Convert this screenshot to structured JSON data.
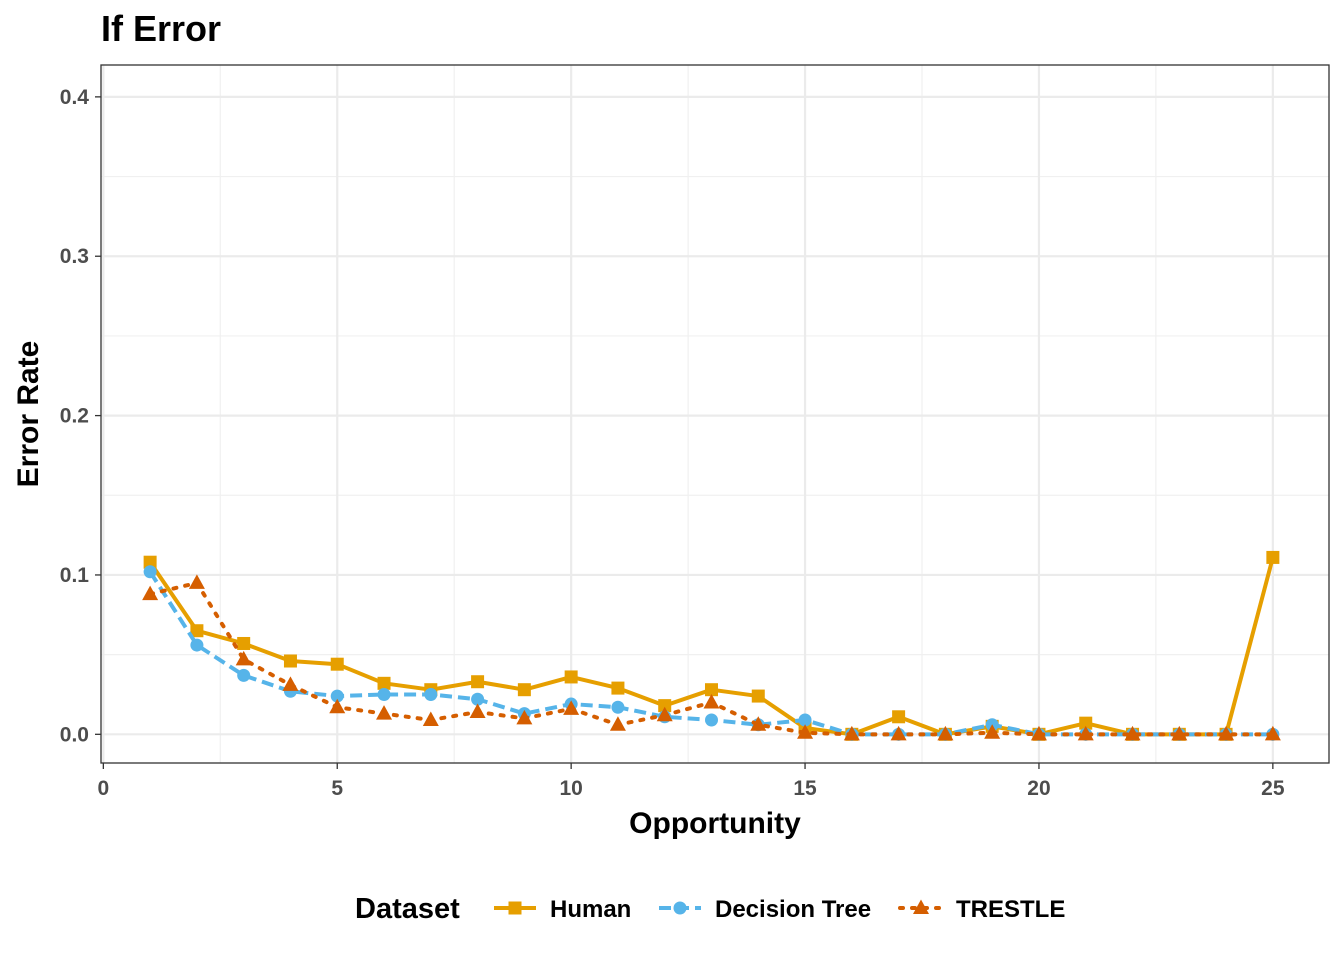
{
  "chart_data": {
    "type": "line",
    "title": "If Error",
    "xlabel": "Opportunity",
    "ylabel": "Error Rate",
    "xlim": [
      -0.05,
      26.2
    ],
    "ylim": [
      -0.018,
      0.42
    ],
    "x_ticks": [
      0,
      5,
      10,
      15,
      20,
      25
    ],
    "y_ticks": [
      0.0,
      0.1,
      0.2,
      0.3,
      0.4
    ],
    "x_tick_labels": [
      "0",
      "5",
      "10",
      "15",
      "20",
      "25"
    ],
    "y_tick_labels": [
      "0.0",
      "0.1",
      "0.2",
      "0.3",
      "0.4"
    ],
    "grid": true,
    "legend": {
      "title": "Dataset",
      "position": "bottom"
    },
    "x": [
      1,
      2,
      3,
      4,
      5,
      6,
      7,
      8,
      9,
      10,
      11,
      12,
      13,
      14,
      15,
      16,
      17,
      18,
      19,
      20,
      21,
      22,
      23,
      24,
      25
    ],
    "series": [
      {
        "name": "Human",
        "color": "#E69F00",
        "marker": "square",
        "dash": "solid",
        "values": [
          0.108,
          0.065,
          0.057,
          0.046,
          0.044,
          0.032,
          0.028,
          0.033,
          0.028,
          0.036,
          0.029,
          0.018,
          0.028,
          0.024,
          0.004,
          0.0,
          0.011,
          0.0,
          0.005,
          0.0,
          0.007,
          0.0,
          0.0,
          0.0,
          0.111
        ]
      },
      {
        "name": "Decision Tree",
        "color": "#56B4E9",
        "marker": "circle",
        "dash": "dashed",
        "values": [
          0.102,
          0.056,
          0.037,
          0.027,
          0.024,
          0.025,
          0.025,
          0.022,
          0.013,
          0.019,
          0.017,
          0.011,
          0.009,
          0.006,
          0.009,
          0.0,
          0.0,
          0.0,
          0.006,
          0.0,
          0.0,
          0.0,
          0.0,
          0.0,
          0.0
        ]
      },
      {
        "name": "TRESTLE",
        "color": "#D55E00",
        "marker": "triangle",
        "dash": "dotted",
        "values": [
          0.088,
          0.095,
          0.047,
          0.031,
          0.017,
          0.013,
          0.009,
          0.014,
          0.01,
          0.016,
          0.006,
          0.012,
          0.02,
          0.006,
          0.001,
          0.0,
          0.0,
          0.0,
          0.001,
          0.0,
          0.0,
          0.0,
          0.0,
          0.0,
          0.0
        ]
      }
    ]
  }
}
